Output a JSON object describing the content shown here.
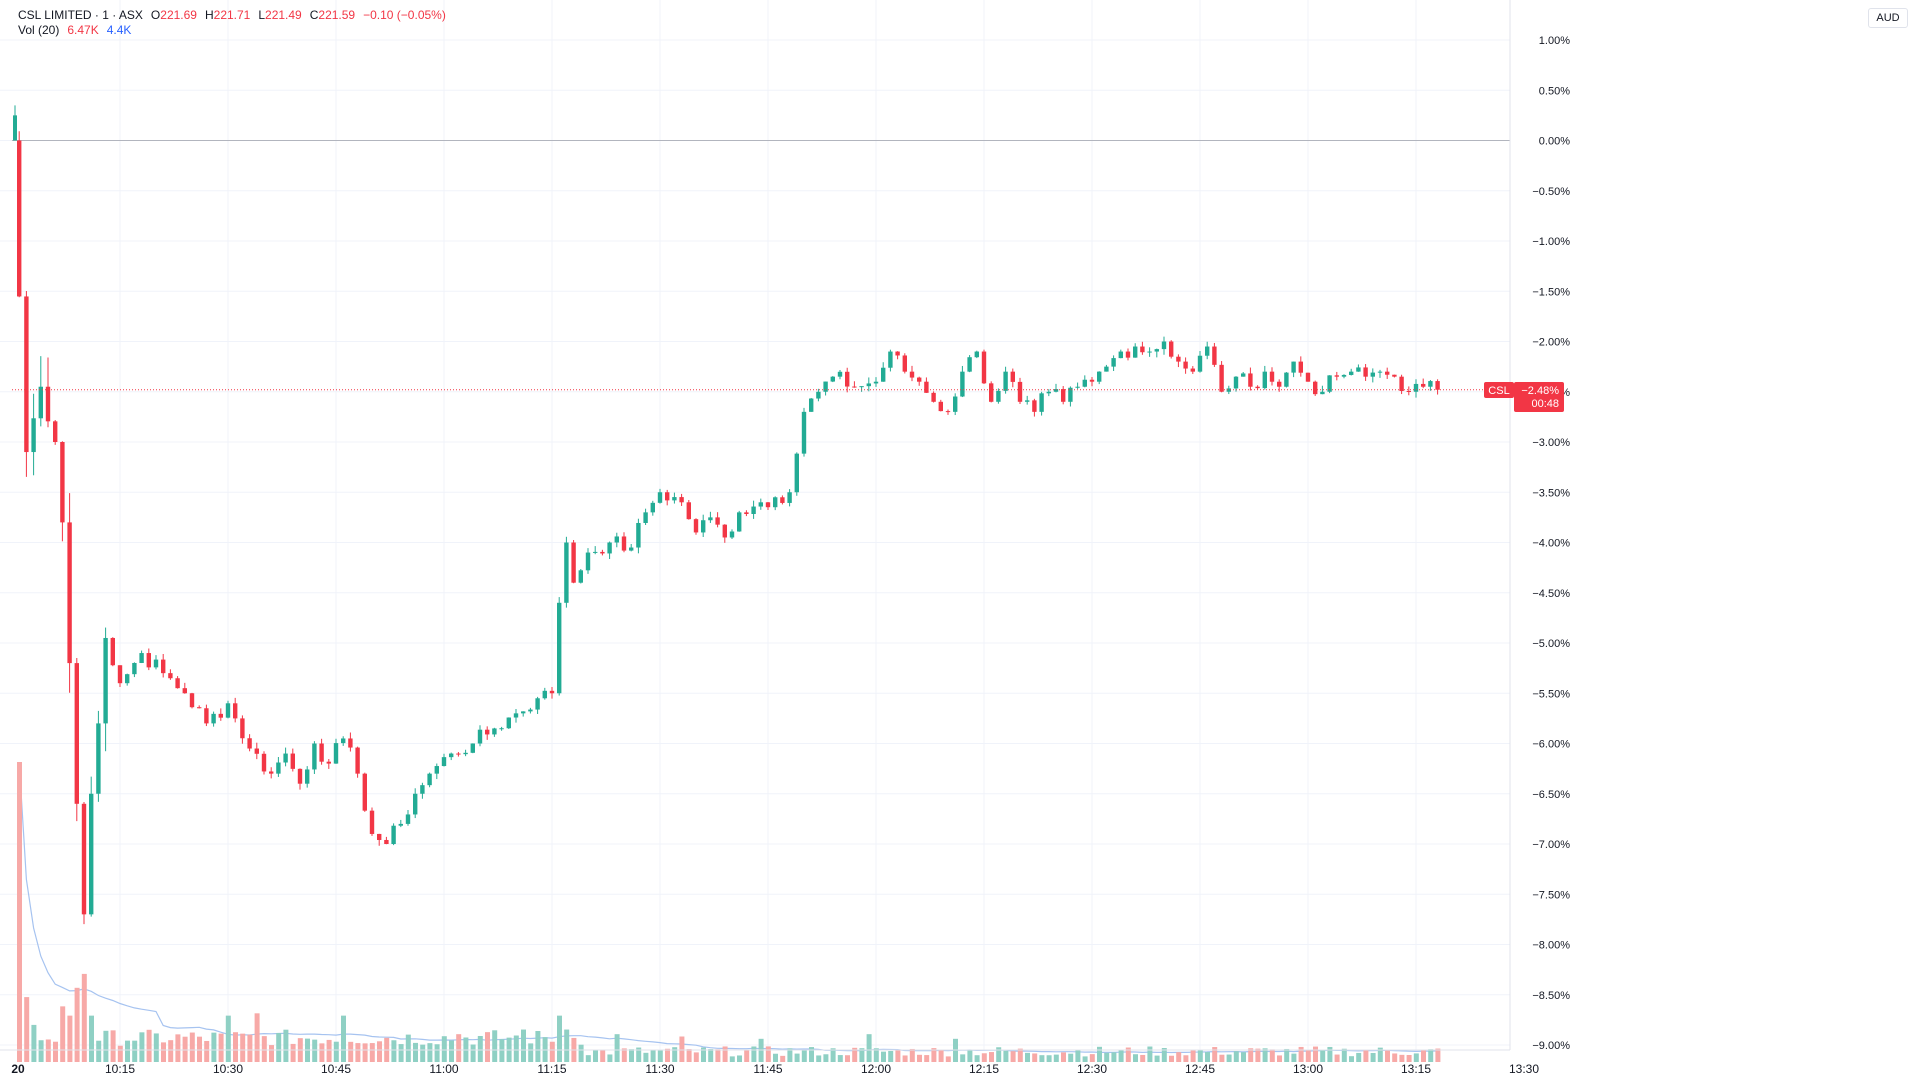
{
  "legend": {
    "symbol": "CSL LIMITED · 1 · ASX",
    "ohlc": [
      {
        "label": "O",
        "value": "221.69"
      },
      {
        "label": "H",
        "value": "221.71"
      },
      {
        "label": "L",
        "value": "221.49"
      },
      {
        "label": "C",
        "value": "221.59"
      }
    ],
    "change": "−0.10 (−0.05%)",
    "vol_label": "Vol (20)",
    "vol_value": "6.47K",
    "vol_ma": "4.4K"
  },
  "currency": "AUD",
  "price_tag": {
    "symbol": "CSL",
    "value": "−2.48%",
    "countdown": "00:48"
  },
  "colors": {
    "up": "#22ab94",
    "down": "#f23645",
    "up_vol": "#8fd0c4",
    "down_vol": "#f7a9a7",
    "vol_ma": "#a6c3f0",
    "grid": "#f0f3fa"
  },
  "chart_data": {
    "type": "candlestick",
    "x_axis": {
      "day_label": "20",
      "tick_labels": [
        "10:15",
        "10:30",
        "10:45",
        "11:00",
        "11:15",
        "11:30",
        "11:45",
        "12:00",
        "12:15",
        "12:30",
        "12:45",
        "13:00",
        "13:15",
        "13:30"
      ]
    },
    "y_axis": {
      "unit": "%",
      "range": [
        -9.2,
        1.2
      ],
      "tick_labels": [
        "1.00%",
        "0.50%",
        "0.00%",
        "−0.50%",
        "−1.00%",
        "−1.50%",
        "−2.00%",
        "−2.50%",
        "−3.00%",
        "−3.50%",
        "−4.00%",
        "−4.50%",
        "−5.00%",
        "−5.50%",
        "−6.00%",
        "−6.50%",
        "−7.00%",
        "−7.50%",
        "−8.00%",
        "−8.50%",
        "−9.00%"
      ]
    },
    "last_value_pct": -2.48,
    "series_note": "1-minute bars, percent change from previous close",
    "anchors": [
      {
        "i": 0,
        "close": 0.0
      },
      {
        "i": 2,
        "close": -3.1
      },
      {
        "i": 4,
        "close": -2.45
      },
      {
        "i": 6,
        "close": -3.0
      },
      {
        "i": 7,
        "close": -3.8
      },
      {
        "i": 8,
        "close": -5.2
      },
      {
        "i": 9,
        "close": -6.6
      },
      {
        "i": 10,
        "close": -7.7
      },
      {
        "i": 11,
        "close": -6.5
      },
      {
        "i": 12,
        "close": -5.8
      },
      {
        "i": 13,
        "close": -4.95
      },
      {
        "i": 15,
        "close": -5.4
      },
      {
        "i": 18,
        "close": -5.1
      },
      {
        "i": 21,
        "close": -5.3
      },
      {
        "i": 24,
        "close": -5.5
      },
      {
        "i": 27,
        "close": -5.8
      },
      {
        "i": 30,
        "close": -5.6
      },
      {
        "i": 33,
        "close": -6.05
      },
      {
        "i": 36,
        "close": -6.3
      },
      {
        "i": 38,
        "close": -6.1
      },
      {
        "i": 40,
        "close": -6.4
      },
      {
        "i": 42,
        "close": -6.0
      },
      {
        "i": 44,
        "close": -6.2
      },
      {
        "i": 46,
        "close": -5.95
      },
      {
        "i": 48,
        "close": -6.3
      },
      {
        "i": 50,
        "close": -6.9
      },
      {
        "i": 52,
        "close": -7.0
      },
      {
        "i": 54,
        "close": -6.8
      },
      {
        "i": 56,
        "close": -6.5
      },
      {
        "i": 58,
        "close": -6.3
      },
      {
        "i": 61,
        "close": -6.1
      },
      {
        "i": 64,
        "close": -6.0
      },
      {
        "i": 67,
        "close": -5.85
      },
      {
        "i": 70,
        "close": -5.7
      },
      {
        "i": 73,
        "close": -5.55
      },
      {
        "i": 75,
        "close": -5.5
      },
      {
        "i": 76,
        "close": -4.6
      },
      {
        "i": 77,
        "close": -4.0
      },
      {
        "i": 78,
        "close": -4.4
      },
      {
        "i": 80,
        "close": -4.1
      },
      {
        "i": 83,
        "close": -4.0
      },
      {
        "i": 86,
        "close": -4.05
      },
      {
        "i": 88,
        "close": -3.7
      },
      {
        "i": 90,
        "close": -3.5
      },
      {
        "i": 93,
        "close": -3.6
      },
      {
        "i": 95,
        "close": -3.9
      },
      {
        "i": 97,
        "close": -3.75
      },
      {
        "i": 99,
        "close": -3.95
      },
      {
        "i": 101,
        "close": -3.7
      },
      {
        "i": 104,
        "close": -3.6
      },
      {
        "i": 106,
        "close": -3.55
      },
      {
        "i": 108,
        "close": -3.5
      },
      {
        "i": 110,
        "close": -2.7
      },
      {
        "i": 112,
        "close": -2.5
      },
      {
        "i": 114,
        "close": -2.35
      },
      {
        "i": 117,
        "close": -2.45
      },
      {
        "i": 120,
        "close": -2.4
      },
      {
        "i": 122,
        "close": -2.1
      },
      {
        "i": 124,
        "close": -2.3
      },
      {
        "i": 126,
        "close": -2.4
      },
      {
        "i": 128,
        "close": -2.6
      },
      {
        "i": 130,
        "close": -2.7
      },
      {
        "i": 132,
        "close": -2.3
      },
      {
        "i": 134,
        "close": -2.1
      },
      {
        "i": 136,
        "close": -2.6
      },
      {
        "i": 138,
        "close": -2.3
      },
      {
        "i": 140,
        "close": -2.6
      },
      {
        "i": 142,
        "close": -2.7
      },
      {
        "i": 144,
        "close": -2.5
      },
      {
        "i": 146,
        "close": -2.6
      },
      {
        "i": 148,
        "close": -2.45
      },
      {
        "i": 150,
        "close": -2.4
      },
      {
        "i": 152,
        "close": -2.25
      },
      {
        "i": 154,
        "close": -2.1
      },
      {
        "i": 156,
        "close": -2.05
      },
      {
        "i": 158,
        "close": -2.1
      },
      {
        "i": 160,
        "close": -2.0
      },
      {
        "i": 162,
        "close": -2.2
      },
      {
        "i": 164,
        "close": -2.3
      },
      {
        "i": 166,
        "close": -2.05
      },
      {
        "i": 168,
        "close": -2.5
      },
      {
        "i": 170,
        "close": -2.35
      },
      {
        "i": 172,
        "close": -2.45
      },
      {
        "i": 174,
        "close": -2.3
      },
      {
        "i": 176,
        "close": -2.45
      },
      {
        "i": 178,
        "close": -2.2
      },
      {
        "i": 180,
        "close": -2.4
      },
      {
        "i": 182,
        "close": -2.5
      },
      {
        "i": 184,
        "close": -2.35
      },
      {
        "i": 186,
        "close": -2.3
      },
      {
        "i": 188,
        "close": -2.35
      },
      {
        "i": 190,
        "close": -2.3
      },
      {
        "i": 192,
        "close": -2.35
      },
      {
        "i": 194,
        "close": -2.5
      },
      {
        "i": 196,
        "close": -2.45
      },
      {
        "i": 198,
        "close": -2.48
      }
    ],
    "volume_spikes": [
      {
        "i": 1,
        "value": 6.47
      },
      {
        "i": 2,
        "value": 1.4
      },
      {
        "i": 3,
        "value": 0.8
      },
      {
        "i": 7,
        "value": 1.2
      },
      {
        "i": 8,
        "value": 1.0
      },
      {
        "i": 9,
        "value": 1.6
      },
      {
        "i": 10,
        "value": 1.9
      },
      {
        "i": 11,
        "value": 1.0
      },
      {
        "i": 30,
        "value": 1.0
      },
      {
        "i": 34,
        "value": 1.05
      },
      {
        "i": 46,
        "value": 1.0
      },
      {
        "i": 62,
        "value": 0.6
      },
      {
        "i": 71,
        "value": 0.7
      },
      {
        "i": 76,
        "value": 1.0
      },
      {
        "i": 77,
        "value": 0.7
      },
      {
        "i": 84,
        "value": 0.6
      },
      {
        "i": 93,
        "value": 0.55
      },
      {
        "i": 104,
        "value": 0.5
      },
      {
        "i": 119,
        "value": 0.6
      },
      {
        "i": 131,
        "value": 0.5
      }
    ]
  }
}
